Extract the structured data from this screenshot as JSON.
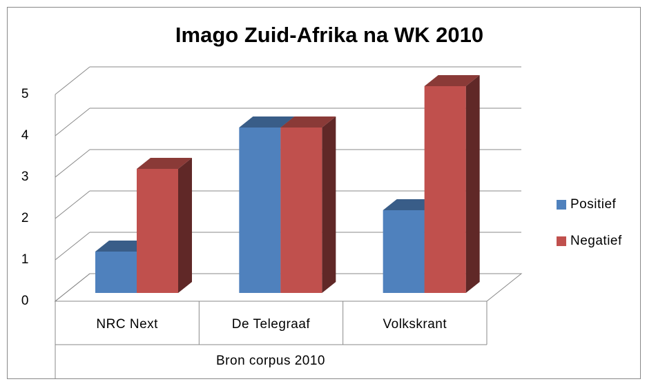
{
  "chart_data": {
    "type": "bar3d",
    "title": "Imago Zuid-Afrika na WK 2010",
    "categories": [
      "NRC Next",
      "De Telegraaf",
      "Volkskrant"
    ],
    "x_label": "Bron corpus 2010",
    "series": [
      {
        "name": "Positief",
        "color": "#4f81bd",
        "values": [
          1,
          4,
          2
        ]
      },
      {
        "name": "Negatief",
        "color": "#c0504d",
        "values": [
          3,
          4,
          5
        ]
      }
    ],
    "ylim": [
      0,
      5
    ],
    "yticks": [
      0,
      1,
      2,
      3,
      4,
      5
    ],
    "grid": true,
    "legend": "right"
  }
}
